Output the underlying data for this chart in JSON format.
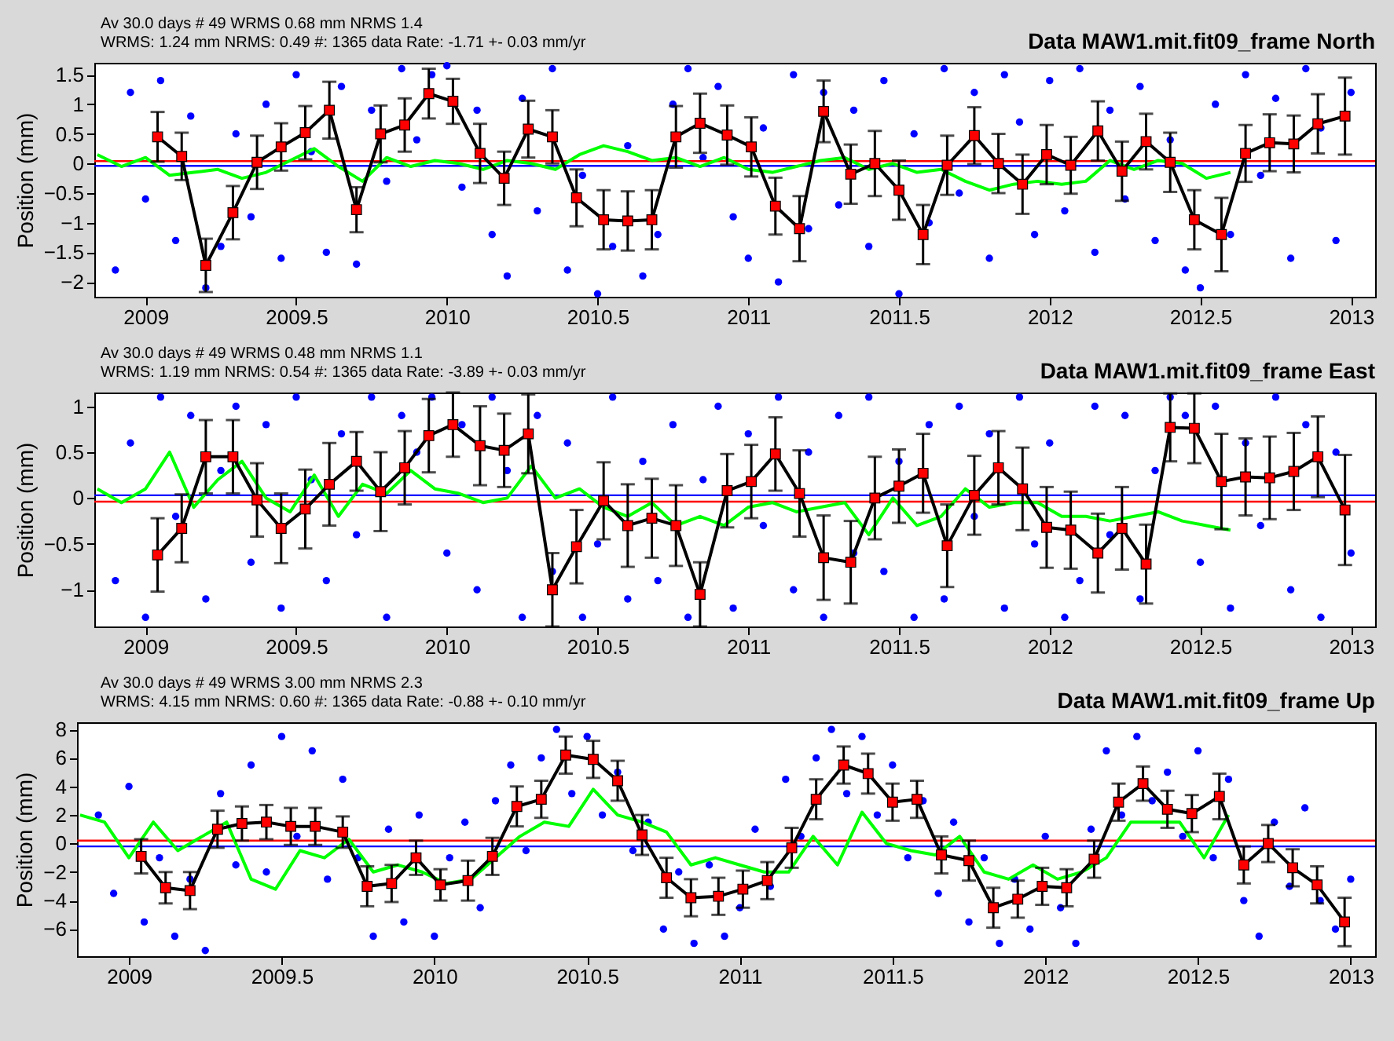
{
  "chart_data": [
    {
      "type": "scatter",
      "title": "Data MAW1.mit.fit09_frame North",
      "annotations": [
        "Av  30.0 days  # 49  WRMS   0.68 mm NRMS   1.4",
        "WRMS:   1.24 mm NRMS:  0.49 #:  1365 data  Rate:    -1.71 +-   0.03 mm/yr"
      ],
      "ylabel": "Position (mm)",
      "xlim": [
        2008.83,
        2013.08
      ],
      "xticks": [
        2009,
        2009.5,
        2010,
        2010.5,
        2011,
        2011.5,
        2012,
        2012.5,
        2013
      ],
      "ylim": [
        -2.25,
        1.7
      ],
      "yticks": [
        -2,
        -1.5,
        -1,
        -0.5,
        0,
        0.5,
        1,
        1.5
      ],
      "ref_lines": [
        {
          "axis": "y",
          "value": 0.04,
          "color": "#ff0000"
        },
        {
          "axis": "y",
          "value": -0.04,
          "color": "#0000ff"
        }
      ],
      "series": [
        {
          "type": "scatter",
          "marker": "circle",
          "color": "#0000ff",
          "x": [
            2008.9,
            2008.95,
            2009,
            2009.05,
            2009.1,
            2009.15,
            2009.2,
            2009.25,
            2009.3,
            2009.35,
            2009.4,
            2009.45,
            2009.5,
            2009.55,
            2009.6,
            2009.65,
            2009.7,
            2009.75,
            2009.8,
            2009.85,
            2009.9,
            2009.95,
            2010,
            2010.05,
            2010.1,
            2010.15,
            2010.2,
            2010.25,
            2010.3,
            2010.35,
            2010.4,
            2010.45,
            2010.5,
            2010.55,
            2010.6,
            2010.65,
            2010.7,
            2010.75,
            2010.8,
            2010.85,
            2010.9,
            2010.95,
            2011,
            2011.05,
            2011.1,
            2011.15,
            2011.2,
            2011.25,
            2011.3,
            2011.35,
            2011.4,
            2011.45,
            2011.5,
            2011.55,
            2011.6,
            2011.65,
            2011.7,
            2011.75,
            2011.8,
            2011.85,
            2011.9,
            2011.95,
            2012,
            2012.05,
            2012.1,
            2012.15,
            2012.2,
            2012.25,
            2012.3,
            2012.35,
            2012.4,
            2012.45,
            2012.5,
            2012.55,
            2012.6,
            2012.65,
            2012.7,
            2012.75,
            2012.8,
            2012.85,
            2012.9,
            2012.95,
            2013
          ],
          "values": [
            -1.8,
            1.2,
            -0.6,
            1.4,
            -1.3,
            0.8,
            -2.1,
            -1.4,
            0.5,
            -0.9,
            1.0,
            -1.6,
            1.5,
            0.2,
            -1.5,
            1.3,
            -1.7,
            0.9,
            -0.3,
            1.6,
            0.4,
            1.5,
            1.65,
            -0.4,
            0.9,
            -1.2,
            -1.9,
            1.1,
            -0.8,
            1.6,
            -1.8,
            -0.2,
            -2.2,
            -1.4,
            0.3,
            -1.9,
            -1.2,
            1.0,
            1.6,
            0.1,
            1.3,
            -0.9,
            -1.6,
            0.6,
            -2.0,
            1.5,
            -1.1,
            1.2,
            -0.7,
            0.9,
            -1.4,
            1.4,
            -2.2,
            0.5,
            -1.0,
            1.6,
            -0.5,
            1.2,
            -1.6,
            1.5,
            0.7,
            -1.2,
            1.4,
            -0.8,
            1.6,
            -1.5,
            0.9,
            -0.6,
            1.3,
            -1.3,
            0.4,
            -1.8,
            -2.1,
            1.0,
            -1.2,
            1.5,
            -0.2,
            1.1,
            -1.6,
            1.6,
            0.6,
            -1.3,
            1.2
          ]
        },
        {
          "type": "line",
          "color": "#00ff00",
          "x": [
            2008.84,
            2008.92,
            2009.0,
            2009.08,
            2009.16,
            2009.24,
            2009.32,
            2009.4,
            2009.48,
            2009.56,
            2009.64,
            2009.72,
            2009.8,
            2009.88,
            2009.96,
            2010.04,
            2010.12,
            2010.2,
            2010.28,
            2010.36,
            2010.44,
            2010.52,
            2010.6,
            2010.68,
            2010.76,
            2010.84,
            2010.92,
            2011.0,
            2011.08,
            2011.16,
            2011.24,
            2011.32,
            2011.4,
            2011.48,
            2011.56,
            2011.64,
            2011.72,
            2011.8,
            2011.88,
            2011.96,
            2012.04,
            2012.12,
            2012.2,
            2012.28,
            2012.36,
            2012.44,
            2012.52,
            2012.6
          ],
          "values": [
            0.15,
            -0.05,
            0.1,
            -0.2,
            -0.15,
            -0.1,
            -0.25,
            -0.15,
            0.05,
            0.25,
            -0.05,
            -0.3,
            0.1,
            -0.05,
            0.05,
            0.0,
            -0.1,
            0.05,
            0.0,
            -0.1,
            0.15,
            0.3,
            0.2,
            0.05,
            0.1,
            -0.05,
            0.1,
            -0.1,
            -0.15,
            -0.05,
            0.05,
            0.1,
            -0.1,
            0.0,
            -0.15,
            -0.1,
            -0.3,
            -0.45,
            -0.35,
            -0.3,
            -0.35,
            -0.3,
            0.05,
            -0.1,
            0.05,
            0.0,
            -0.25,
            -0.15
          ]
        },
        {
          "type": "line",
          "color": "#000000",
          "x": [
            2009.04,
            2009.12,
            2009.2,
            2009.29,
            2009.37,
            2009.45,
            2009.53,
            2009.61,
            2009.7,
            2009.78,
            2009.86,
            2009.94,
            2010.02,
            2010.11,
            2010.19,
            2010.27,
            2010.35,
            2010.43,
            2010.52,
            2010.6,
            2010.68,
            2010.76,
            2010.84,
            2010.93,
            2011.01,
            2011.09,
            2011.17,
            2011.25,
            2011.34,
            2011.42,
            2011.5,
            2011.58,
            2011.66,
            2011.75,
            2011.83,
            2011.91,
            2011.99,
            2012.07,
            2012.16,
            2012.24,
            2012.32,
            2012.4,
            2012.48,
            2012.57,
            2012.65,
            2012.73,
            2012.81,
            2012.89,
            2012.98
          ],
          "values": [
            0.45,
            0.12,
            -1.72,
            -0.83,
            0.02,
            0.28,
            0.52,
            0.9,
            -0.78,
            0.5,
            0.65,
            1.18,
            1.05,
            0.17,
            -0.25,
            0.58,
            0.45,
            -0.58,
            -0.95,
            -0.97,
            -0.95,
            0.45,
            0.68,
            0.48,
            0.28,
            -0.72,
            -1.1,
            0.88,
            -0.18,
            0.0,
            -0.45,
            -1.2,
            -0.03,
            0.47,
            0.0,
            -0.35,
            0.15,
            -0.03,
            0.55,
            -0.13,
            0.37,
            0.02,
            -0.95,
            -1.2,
            0.17,
            0.35,
            0.33,
            0.67,
            0.8
          ]
        },
        {
          "type": "scatter",
          "marker": "square",
          "color": "#ff0000",
          "x": [
            2009.04,
            2009.12,
            2009.2,
            2009.29,
            2009.37,
            2009.45,
            2009.53,
            2009.61,
            2009.7,
            2009.78,
            2009.86,
            2009.94,
            2010.02,
            2010.11,
            2010.19,
            2010.27,
            2010.35,
            2010.43,
            2010.52,
            2010.6,
            2010.68,
            2010.76,
            2010.84,
            2010.93,
            2011.01,
            2011.09,
            2011.17,
            2011.25,
            2011.34,
            2011.42,
            2011.5,
            2011.58,
            2011.66,
            2011.75,
            2011.83,
            2011.91,
            2011.99,
            2012.07,
            2012.16,
            2012.24,
            2012.32,
            2012.4,
            2012.48,
            2012.57,
            2012.65,
            2012.73,
            2012.81,
            2012.89,
            2012.98
          ],
          "values": [
            0.45,
            0.12,
            -1.72,
            -0.83,
            0.02,
            0.28,
            0.52,
            0.9,
            -0.78,
            0.5,
            0.65,
            1.18,
            1.05,
            0.17,
            -0.25,
            0.58,
            0.45,
            -0.58,
            -0.95,
            -0.97,
            -0.95,
            0.45,
            0.68,
            0.48,
            0.28,
            -0.72,
            -1.1,
            0.88,
            -0.18,
            0.0,
            -0.45,
            -1.2,
            -0.03,
            0.47,
            0.0,
            -0.35,
            0.15,
            -0.03,
            0.55,
            -0.13,
            0.37,
            0.02,
            -0.95,
            -1.2,
            0.17,
            0.35,
            0.33,
            0.67,
            0.8
          ],
          "errors": [
            0.42,
            0.4,
            0.45,
            0.45,
            0.45,
            0.4,
            0.45,
            0.48,
            0.38,
            0.48,
            0.45,
            0.42,
            0.38,
            0.5,
            0.45,
            0.48,
            0.45,
            0.48,
            0.5,
            0.5,
            0.5,
            0.52,
            0.5,
            0.5,
            0.5,
            0.48,
            0.55,
            0.52,
            0.5,
            0.55,
            0.5,
            0.5,
            0.5,
            0.48,
            0.5,
            0.5,
            0.5,
            0.48,
            0.5,
            0.5,
            0.47,
            0.5,
            0.5,
            0.62,
            0.48,
            0.48,
            0.48,
            0.5,
            0.65
          ]
        }
      ]
    },
    {
      "type": "scatter",
      "title": "Data MAW1.mit.fit09_frame East",
      "annotations": [
        "Av  30.0 days  # 49  WRMS   0.48 mm NRMS   1.1",
        "WRMS:   1.19 mm NRMS:  0.54 #:  1365 data  Rate:    -3.89 +-   0.03 mm/yr"
      ],
      "ylabel": "Position (mm)",
      "xlim": [
        2008.83,
        2013.08
      ],
      "xticks": [
        2009,
        2009.5,
        2010,
        2010.5,
        2011,
        2011.5,
        2012,
        2012.5,
        2013
      ],
      "ylim": [
        -1.4,
        1.15
      ],
      "yticks": [
        -1,
        -0.5,
        0,
        0.5,
        1
      ],
      "ref_lines": [
        {
          "axis": "y",
          "value": 0.03,
          "color": "#0000ff"
        },
        {
          "axis": "y",
          "value": -0.04,
          "color": "#ff0000"
        }
      ],
      "series": [
        {
          "type": "scatter",
          "marker": "circle",
          "color": "#0000ff",
          "x": [
            2008.9,
            2008.95,
            2009,
            2009.05,
            2009.1,
            2009.15,
            2009.2,
            2009.25,
            2009.3,
            2009.35,
            2009.4,
            2009.45,
            2009.5,
            2009.55,
            2009.6,
            2009.65,
            2009.7,
            2009.75,
            2009.8,
            2009.85,
            2009.9,
            2009.95,
            2010,
            2010.05,
            2010.1,
            2010.15,
            2010.2,
            2010.25,
            2010.3,
            2010.35,
            2010.4,
            2010.45,
            2010.5,
            2010.55,
            2010.6,
            2010.65,
            2010.7,
            2010.75,
            2010.8,
            2010.85,
            2010.9,
            2010.95,
            2011,
            2011.05,
            2011.1,
            2011.15,
            2011.2,
            2011.25,
            2011.3,
            2011.35,
            2011.4,
            2011.45,
            2011.5,
            2011.55,
            2011.6,
            2011.65,
            2011.7,
            2011.75,
            2011.8,
            2011.85,
            2011.9,
            2011.95,
            2012,
            2012.05,
            2012.1,
            2012.15,
            2012.2,
            2012.25,
            2012.3,
            2012.35,
            2012.4,
            2012.45,
            2012.5,
            2012.55,
            2012.6,
            2012.65,
            2012.7,
            2012.75,
            2012.8,
            2012.85,
            2012.9,
            2012.95,
            2013
          ],
          "values": [
            -0.9,
            0.6,
            -1.3,
            1.1,
            -0.2,
            0.9,
            -1.1,
            0.3,
            1.0,
            -0.7,
            0.8,
            -1.2,
            1.1,
            0.2,
            -0.9,
            0.7,
            -0.4,
            1.1,
            -1.3,
            0.9,
            0.5,
            1.1,
            -0.6,
            0.8,
            -1.0,
            1.1,
            0.3,
            -1.3,
            0.9,
            -0.8,
            0.6,
            -1.3,
            -0.5,
            1.1,
            -1.1,
            0.4,
            -0.9,
            0.8,
            -1.3,
            0.2,
            1.0,
            -1.2,
            0.7,
            -0.3,
            1.1,
            -1.0,
            0.5,
            -1.3,
            0.9,
            -0.6,
            1.1,
            -0.8,
            0.4,
            -1.3,
            0.8,
            -1.1,
            1.0,
            -0.2,
            0.7,
            -1.2,
            1.1,
            -0.5,
            0.6,
            -1.3,
            -0.9,
            1.0,
            -0.4,
            0.9,
            -1.1,
            0.3,
            1.1,
            0.9,
            -0.7,
            1.0,
            -1.2,
            0.6,
            -0.3,
            1.1,
            -1.0,
            0.8,
            -1.3,
            0.5,
            -0.6
          ]
        },
        {
          "type": "line",
          "color": "#00ff00",
          "x": [
            2008.84,
            2008.92,
            2009.0,
            2009.08,
            2009.16,
            2009.24,
            2009.32,
            2009.4,
            2009.48,
            2009.56,
            2009.64,
            2009.72,
            2009.8,
            2009.88,
            2009.96,
            2010.04,
            2010.12,
            2010.2,
            2010.28,
            2010.36,
            2010.44,
            2010.52,
            2010.6,
            2010.68,
            2010.76,
            2010.84,
            2010.92,
            2011.0,
            2011.08,
            2011.16,
            2011.24,
            2011.32,
            2011.4,
            2011.48,
            2011.56,
            2011.64,
            2011.72,
            2011.8,
            2011.88,
            2011.96,
            2012.04,
            2012.12,
            2012.2,
            2012.28,
            2012.36,
            2012.44,
            2012.52,
            2012.6
          ],
          "values": [
            0.1,
            -0.05,
            0.1,
            0.5,
            -0.1,
            0.2,
            0.4,
            0.0,
            -0.15,
            0.25,
            -0.2,
            0.15,
            0.05,
            0.3,
            0.1,
            0.05,
            -0.05,
            0.0,
            0.35,
            0.0,
            0.1,
            -0.1,
            -0.2,
            -0.05,
            -0.3,
            -0.2,
            -0.3,
            -0.1,
            -0.05,
            -0.15,
            -0.1,
            -0.05,
            -0.4,
            0.0,
            -0.3,
            -0.2,
            0.1,
            -0.1,
            -0.05,
            -0.05,
            -0.2,
            -0.2,
            -0.25,
            -0.2,
            -0.15,
            -0.25,
            -0.3,
            -0.35
          ]
        },
        {
          "type": "line",
          "color": "#000000",
          "x": [
            2009.04,
            2009.12,
            2009.2,
            2009.29,
            2009.37,
            2009.45,
            2009.53,
            2009.61,
            2009.7,
            2009.78,
            2009.86,
            2009.94,
            2010.02,
            2010.11,
            2010.19,
            2010.27,
            2010.35,
            2010.43,
            2010.52,
            2010.6,
            2010.68,
            2010.76,
            2010.84,
            2010.93,
            2011.01,
            2011.09,
            2011.17,
            2011.25,
            2011.34,
            2011.42,
            2011.5,
            2011.58,
            2011.66,
            2011.75,
            2011.83,
            2011.91,
            2011.99,
            2012.07,
            2012.16,
            2012.24,
            2012.32,
            2012.4,
            2012.48,
            2012.57,
            2012.65,
            2012.73,
            2012.81,
            2012.89,
            2012.98
          ],
          "values": [
            -0.62,
            -0.33,
            0.45,
            0.45,
            -0.02,
            -0.33,
            -0.12,
            0.15,
            0.4,
            0.07,
            0.33,
            0.68,
            0.8,
            0.57,
            0.52,
            0.7,
            -1.0,
            -0.53,
            -0.03,
            -0.3,
            -0.22,
            -0.3,
            -1.05,
            0.08,
            0.18,
            0.48,
            0.05,
            -0.65,
            -0.7,
            0.0,
            0.13,
            0.27,
            -0.52,
            0.03,
            0.33,
            0.1,
            -0.32,
            -0.35,
            -0.6,
            -0.33,
            -0.72,
            0.77,
            0.76,
            0.18,
            0.23,
            0.22,
            0.29,
            0.45,
            -0.13
          ]
        },
        {
          "type": "scatter",
          "marker": "square",
          "color": "#ff0000",
          "x": [
            2009.04,
            2009.12,
            2009.2,
            2009.29,
            2009.37,
            2009.45,
            2009.53,
            2009.61,
            2009.7,
            2009.78,
            2009.86,
            2009.94,
            2010.02,
            2010.11,
            2010.19,
            2010.27,
            2010.35,
            2010.43,
            2010.52,
            2010.6,
            2010.68,
            2010.76,
            2010.84,
            2010.93,
            2011.01,
            2011.09,
            2011.17,
            2011.25,
            2011.34,
            2011.42,
            2011.5,
            2011.58,
            2011.66,
            2011.75,
            2011.83,
            2011.91,
            2011.99,
            2012.07,
            2012.16,
            2012.24,
            2012.32,
            2012.4,
            2012.48,
            2012.57,
            2012.65,
            2012.73,
            2012.81,
            2012.89,
            2012.98
          ],
          "values": [
            -0.62,
            -0.33,
            0.45,
            0.45,
            -0.02,
            -0.33,
            -0.12,
            0.15,
            0.4,
            0.07,
            0.33,
            0.68,
            0.8,
            0.57,
            0.52,
            0.7,
            -1.0,
            -0.53,
            -0.03,
            -0.3,
            -0.22,
            -0.3,
            -1.05,
            0.08,
            0.18,
            0.48,
            0.05,
            -0.65,
            -0.7,
            0.0,
            0.13,
            0.27,
            -0.52,
            0.03,
            0.33,
            0.1,
            -0.32,
            -0.35,
            -0.6,
            -0.33,
            -0.72,
            0.77,
            0.76,
            0.18,
            0.23,
            0.22,
            0.29,
            0.45,
            -0.13
          ],
          "errors": [
            0.4,
            0.37,
            0.4,
            0.4,
            0.4,
            0.38,
            0.43,
            0.45,
            0.32,
            0.43,
            0.4,
            0.4,
            0.35,
            0.43,
            0.4,
            0.43,
            0.4,
            0.4,
            0.42,
            0.45,
            0.43,
            0.44,
            0.35,
            0.4,
            0.4,
            0.4,
            0.47,
            0.46,
            0.45,
            0.45,
            0.4,
            0.43,
            0.45,
            0.43,
            0.4,
            0.45,
            0.44,
            0.42,
            0.43,
            0.45,
            0.43,
            0.37,
            0.38,
            0.52,
            0.42,
            0.45,
            0.42,
            0.44,
            0.6
          ]
        }
      ]
    },
    {
      "type": "scatter",
      "title": "Data MAW1.mit.fit09_frame Up",
      "annotations": [
        "Av  30.0 days  # 49  WRMS   3.00 mm NRMS   2.3",
        "WRMS:   4.15 mm NRMS:  0.60 #:  1365 data  Rate:    -0.88 +-   0.10 mm/yr"
      ],
      "ylabel": "Position (mm)",
      "xlim": [
        2008.83,
        2013.08
      ],
      "xticks": [
        2009,
        2009.5,
        2010,
        2010.5,
        2011,
        2011.5,
        2012,
        2012.5,
        2013
      ],
      "ylim": [
        -7.9,
        8.5
      ],
      "yticks": [
        -6,
        -4,
        -2,
        0,
        2,
        4,
        6,
        8
      ],
      "ref_lines": [
        {
          "axis": "y",
          "value": 0.2,
          "color": "#ff0000"
        },
        {
          "axis": "y",
          "value": -0.2,
          "color": "#0000ff"
        }
      ],
      "series": [
        {
          "type": "scatter",
          "marker": "circle",
          "color": "#0000ff",
          "x": [
            2008.9,
            2008.95,
            2009,
            2009.05,
            2009.1,
            2009.15,
            2009.2,
            2009.25,
            2009.3,
            2009.35,
            2009.4,
            2009.45,
            2009.5,
            2009.55,
            2009.6,
            2009.65,
            2009.7,
            2009.75,
            2009.8,
            2009.85,
            2009.9,
            2009.95,
            2010,
            2010.05,
            2010.1,
            2010.15,
            2010.2,
            2010.25,
            2010.3,
            2010.35,
            2010.4,
            2010.45,
            2010.5,
            2010.55,
            2010.6,
            2010.65,
            2010.7,
            2010.75,
            2010.8,
            2010.85,
            2010.9,
            2010.95,
            2011,
            2011.05,
            2011.1,
            2011.15,
            2011.2,
            2011.25,
            2011.3,
            2011.35,
            2011.4,
            2011.45,
            2011.5,
            2011.55,
            2011.6,
            2011.65,
            2011.7,
            2011.75,
            2011.8,
            2011.85,
            2011.9,
            2011.95,
            2012,
            2012.05,
            2012.1,
            2012.15,
            2012.2,
            2012.25,
            2012.3,
            2012.35,
            2012.4,
            2012.45,
            2012.5,
            2012.55,
            2012.6,
            2012.65,
            2012.7,
            2012.75,
            2012.8,
            2012.85,
            2012.9,
            2012.95,
            2013
          ],
          "values": [
            2.0,
            -3.5,
            4.0,
            -5.5,
            -1.0,
            -6.5,
            -2.5,
            -7.5,
            3.5,
            -1.5,
            5.5,
            -2.0,
            7.5,
            0.5,
            6.5,
            -2.5,
            4.5,
            -1.0,
            -6.5,
            1.0,
            -5.5,
            2.0,
            -6.5,
            -1.0,
            1.5,
            -4.5,
            3.0,
            5.5,
            -0.5,
            6.0,
            8.0,
            3.5,
            7.5,
            2.0,
            5.0,
            -0.5,
            1.5,
            -6.0,
            -2.0,
            -7.0,
            -1.5,
            -6.5,
            -4.5,
            1.0,
            -3.0,
            4.5,
            0.5,
            6.0,
            8.0,
            3.5,
            7.5,
            2.0,
            5.5,
            -1.0,
            3.0,
            -3.5,
            1.5,
            -5.5,
            -1.0,
            -7.0,
            -2.5,
            -6.0,
            0.5,
            -4.5,
            -7.0,
            1.0,
            6.5,
            2.0,
            7.5,
            3.0,
            5.0,
            0.5,
            6.5,
            -1.0,
            4.5,
            -4.0,
            -6.5,
            1.5,
            -3.0,
            2.5,
            -4.0,
            -6.0,
            -2.5
          ]
        },
        {
          "type": "line",
          "color": "#00ff00",
          "x": [
            2008.84,
            2008.92,
            2009.0,
            2009.08,
            2009.16,
            2009.24,
            2009.32,
            2009.4,
            2009.48,
            2009.56,
            2009.64,
            2009.72,
            2009.8,
            2009.88,
            2009.96,
            2010.04,
            2010.12,
            2010.2,
            2010.28,
            2010.36,
            2010.44,
            2010.52,
            2010.6,
            2010.68,
            2010.76,
            2010.84,
            2010.92,
            2011.0,
            2011.08,
            2011.16,
            2011.24,
            2011.32,
            2011.4,
            2011.48,
            2011.56,
            2011.64,
            2011.72,
            2011.8,
            2011.88,
            2011.96,
            2012.04,
            2012.12,
            2012.2,
            2012.28,
            2012.36,
            2012.44,
            2012.52,
            2012.6
          ],
          "values": [
            2.0,
            1.5,
            -1.0,
            1.5,
            -0.5,
            0.5,
            1.5,
            -2.5,
            -3.2,
            -0.5,
            -1.0,
            0.3,
            -2.0,
            -1.5,
            -2.0,
            -2.8,
            -2.5,
            -1.0,
            0.5,
            1.5,
            1.2,
            3.8,
            2.0,
            1.5,
            0.8,
            -1.5,
            -1.0,
            -1.5,
            -2.0,
            -2.0,
            0.5,
            -1.5,
            2.2,
            0.0,
            -0.5,
            -0.8,
            0.5,
            -2.0,
            -2.5,
            -1.5,
            -2.5,
            -2.0,
            -1.0,
            1.5,
            1.5,
            1.5,
            -1.0,
            2.0
          ]
        },
        {
          "type": "line",
          "color": "#000000",
          "x": [
            2009.04,
            2009.12,
            2009.2,
            2009.29,
            2009.37,
            2009.45,
            2009.53,
            2009.61,
            2009.7,
            2009.78,
            2009.86,
            2009.94,
            2010.02,
            2010.11,
            2010.19,
            2010.27,
            2010.35,
            2010.43,
            2010.52,
            2010.6,
            2010.68,
            2010.76,
            2010.84,
            2010.93,
            2011.01,
            2011.09,
            2011.17,
            2011.25,
            2011.34,
            2011.42,
            2011.5,
            2011.58,
            2011.66,
            2011.75,
            2011.83,
            2011.91,
            2011.99,
            2012.07,
            2012.16,
            2012.24,
            2012.32,
            2012.4,
            2012.48,
            2012.57,
            2012.65,
            2012.73,
            2012.81,
            2012.89,
            2012.98
          ],
          "values": [
            -0.9,
            -3.1,
            -3.3,
            1.0,
            1.4,
            1.5,
            1.2,
            1.2,
            0.8,
            -3.0,
            -2.8,
            -1.0,
            -2.9,
            -2.6,
            -0.9,
            2.6,
            3.1,
            6.2,
            5.9,
            4.4,
            0.6,
            -2.4,
            -3.8,
            -3.7,
            -3.2,
            -2.6,
            -0.3,
            3.1,
            5.5,
            4.9,
            2.9,
            3.1,
            -0.8,
            -1.2,
            -4.5,
            -3.9,
            -3.0,
            -3.1,
            -1.1,
            2.9,
            4.2,
            2.4,
            2.1,
            3.3,
            -1.5,
            0.0,
            -1.7,
            -2.9,
            -5.5
          ]
        },
        {
          "type": "scatter",
          "marker": "square",
          "color": "#ff0000",
          "x": [
            2009.04,
            2009.12,
            2009.2,
            2009.29,
            2009.37,
            2009.45,
            2009.53,
            2009.61,
            2009.7,
            2009.78,
            2009.86,
            2009.94,
            2010.02,
            2010.11,
            2010.19,
            2010.27,
            2010.35,
            2010.43,
            2010.52,
            2010.6,
            2010.68,
            2010.76,
            2010.84,
            2010.93,
            2011.01,
            2011.09,
            2011.17,
            2011.25,
            2011.34,
            2011.42,
            2011.5,
            2011.58,
            2011.66,
            2011.75,
            2011.83,
            2011.91,
            2011.99,
            2012.07,
            2012.16,
            2012.24,
            2012.32,
            2012.4,
            2012.48,
            2012.57,
            2012.65,
            2012.73,
            2012.81,
            2012.89,
            2012.98
          ],
          "values": [
            -0.9,
            -3.1,
            -3.3,
            1.0,
            1.4,
            1.5,
            1.2,
            1.2,
            0.8,
            -3.0,
            -2.8,
            -1.0,
            -2.9,
            -2.6,
            -0.9,
            2.6,
            3.1,
            6.2,
            5.9,
            4.4,
            0.6,
            -2.4,
            -3.8,
            -3.7,
            -3.2,
            -2.6,
            -0.3,
            3.1,
            5.5,
            4.9,
            2.9,
            3.1,
            -0.8,
            -1.2,
            -4.5,
            -3.9,
            -3.0,
            -3.1,
            -1.1,
            2.9,
            4.2,
            2.4,
            2.1,
            3.3,
            -1.5,
            0.0,
            -1.7,
            -2.9,
            -5.5
          ],
          "errors": [
            1.2,
            1.1,
            1.3,
            1.3,
            1.2,
            1.2,
            1.3,
            1.3,
            1.1,
            1.4,
            1.3,
            1.2,
            1.1,
            1.4,
            1.3,
            1.4,
            1.3,
            1.3,
            1.3,
            1.4,
            1.4,
            1.4,
            1.3,
            1.3,
            1.3,
            1.3,
            1.4,
            1.4,
            1.3,
            1.4,
            1.3,
            1.3,
            1.3,
            1.4,
            1.4,
            1.3,
            1.3,
            1.3,
            1.3,
            1.3,
            1.2,
            1.3,
            1.3,
            1.6,
            1.3,
            1.3,
            1.3,
            1.3,
            1.7
          ]
        }
      ]
    }
  ]
}
